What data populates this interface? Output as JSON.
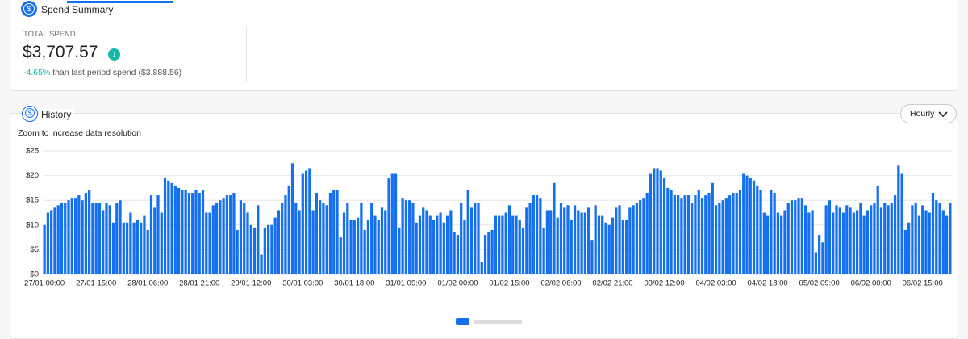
{
  "summary": {
    "title": "Spend Summary",
    "total_label": "TOTAL SPEND",
    "total_value": "$3,707.57",
    "change": "-4.65%",
    "change_text": "than last period spend ($3,888.56)"
  },
  "history": {
    "title": "History",
    "dropdown": "Hourly",
    "note": "Zoom to increase data resolution"
  },
  "chart_data": {
    "type": "bar",
    "color": "#1570ef",
    "grid": true,
    "ylim": [
      0,
      25
    ],
    "yticks": [
      {
        "value": 0,
        "label": "$0"
      },
      {
        "value": 5,
        "label": "$5"
      },
      {
        "value": 10,
        "label": "$10"
      },
      {
        "value": 15,
        "label": "$15"
      },
      {
        "value": 20,
        "label": "$20"
      },
      {
        "value": 25,
        "label": "$25"
      }
    ],
    "categories": [
      "27/01 00:00",
      null,
      null,
      null,
      null,
      null,
      null,
      null,
      null,
      null,
      null,
      null,
      null,
      null,
      null,
      "27/01 15:00",
      null,
      null,
      null,
      null,
      null,
      null,
      null,
      null,
      null,
      null,
      null,
      null,
      null,
      null,
      "28/01 06:00",
      null,
      null,
      null,
      null,
      null,
      null,
      null,
      null,
      null,
      null,
      null,
      null,
      null,
      null,
      "28/01 21:00",
      null,
      null,
      null,
      null,
      null,
      null,
      null,
      null,
      null,
      null,
      null,
      null,
      null,
      null,
      "29/01 12:00",
      null,
      null,
      null,
      null,
      null,
      null,
      null,
      null,
      null,
      null,
      null,
      null,
      null,
      null,
      "30/01 03:00",
      null,
      null,
      null,
      null,
      null,
      null,
      null,
      null,
      null,
      null,
      null,
      null,
      null,
      null,
      "30/01 18:00",
      null,
      null,
      null,
      null,
      null,
      null,
      null,
      null,
      null,
      null,
      null,
      null,
      null,
      null,
      "31/01 09:00",
      null,
      null,
      null,
      null,
      null,
      null,
      null,
      null,
      null,
      null,
      null,
      null,
      null,
      null,
      "01/02 00:00",
      null,
      null,
      null,
      null,
      null,
      null,
      null,
      null,
      null,
      null,
      null,
      null,
      null,
      null,
      "01/02 15:00",
      null,
      null,
      null,
      null,
      null,
      null,
      null,
      null,
      null,
      null,
      null,
      null,
      null,
      null,
      "02/02 06:00",
      null,
      null,
      null,
      null,
      null,
      null,
      null,
      null,
      null,
      null,
      null,
      null,
      null,
      null,
      "02/02 21:00",
      null,
      null,
      null,
      null,
      null,
      null,
      null,
      null,
      null,
      null,
      null,
      null,
      null,
      null,
      "03/02 12:00",
      null,
      null,
      null,
      null,
      null,
      null,
      null,
      null,
      null,
      null,
      null,
      null,
      null,
      null,
      "04/02 03:00",
      null,
      null,
      null,
      null,
      null,
      null,
      null,
      null,
      null,
      null,
      null,
      null,
      null,
      null,
      "04/02 18:00",
      null,
      null,
      null,
      null,
      null,
      null,
      null,
      null,
      null,
      null,
      null,
      null,
      null,
      null,
      "05/02 09:00",
      null,
      null,
      null,
      null,
      null,
      null,
      null,
      null,
      null,
      null,
      null,
      null,
      null,
      null,
      "06/02 00:00",
      null,
      null,
      null,
      null,
      null,
      null,
      null,
      null,
      null,
      null,
      null,
      null,
      null,
      null,
      "06/02 15:00",
      null,
      null,
      null,
      null,
      null,
      null,
      null,
      null
    ],
    "values": [
      10,
      12.5,
      13,
      13.5,
      14,
      14.5,
      14.5,
      15,
      15.5,
      15.5,
      16,
      15,
      16.5,
      17,
      14.5,
      14.5,
      14.5,
      13,
      14.5,
      14,
      10.5,
      14.5,
      15,
      10.5,
      10.5,
      12.5,
      10.5,
      11,
      10.5,
      12,
      9,
      16,
      13.5,
      16,
      12.5,
      19.5,
      19,
      18.5,
      18,
      17.5,
      17,
      17,
      16.5,
      16.5,
      17,
      16.5,
      17,
      12.5,
      12.5,
      14,
      14.5,
      15,
      15.5,
      16,
      16,
      16.5,
      9,
      15,
      14.5,
      12.5,
      10,
      9.5,
      14,
      4,
      9.5,
      10,
      10,
      11.5,
      13,
      14.5,
      16,
      18,
      22.5,
      14.5,
      13,
      20.5,
      21,
      21.5,
      13,
      16.5,
      15,
      14.5,
      14,
      16.5,
      17,
      17,
      7.5,
      12.5,
      14.5,
      11,
      11,
      11.5,
      14.5,
      9,
      11,
      14.5,
      12,
      11,
      13.5,
      13,
      19.5,
      20.5,
      20.5,
      9.5,
      15.5,
      15,
      15,
      14.5,
      10.5,
      12,
      13.5,
      13,
      12,
      11,
      12,
      12.5,
      10.5,
      12,
      13,
      8.5,
      8,
      14.5,
      11,
      17,
      13.5,
      14.5,
      14.5,
      2.5,
      8,
      8.5,
      9,
      12,
      12,
      12,
      12.5,
      14,
      12,
      12,
      11,
      9.5,
      13.5,
      14.5,
      16,
      16,
      15.5,
      9.5,
      13,
      13,
      18.5,
      11.5,
      14.5,
      13.5,
      14,
      11,
      14,
      13,
      12.5,
      12.5,
      13.5,
      7,
      14,
      12,
      12,
      10.5,
      10,
      11.5,
      13.5,
      14,
      11,
      11,
      13.5,
      14,
      14.5,
      15,
      15.5,
      16.5,
      20.5,
      21.5,
      21.5,
      21,
      19.5,
      17.5,
      17,
      16,
      16,
      15.5,
      16,
      16,
      14.5,
      16,
      17,
      15.5,
      16,
      16.5,
      18.5,
      14,
      14.5,
      15,
      15.5,
      16,
      16.5,
      16.5,
      17,
      20.5,
      20,
      19.5,
      19,
      18,
      17,
      12.5,
      12,
      17,
      16.5,
      12.5,
      12,
      13,
      14.5,
      15,
      15,
      15.5,
      15.5,
      14,
      12.5,
      13,
      4.5,
      8,
      6.5,
      14,
      15,
      12.5,
      14,
      13.5,
      12.5,
      14,
      13.5,
      12.5,
      13,
      14.5,
      12,
      13,
      14,
      14.5,
      18,
      13.5,
      14.5,
      14,
      14.5,
      16,
      22,
      20.5,
      9,
      10.5,
      14,
      14.5,
      12,
      14,
      13,
      12.5,
      16.5,
      15,
      14.5,
      13,
      12,
      14.5
    ]
  }
}
